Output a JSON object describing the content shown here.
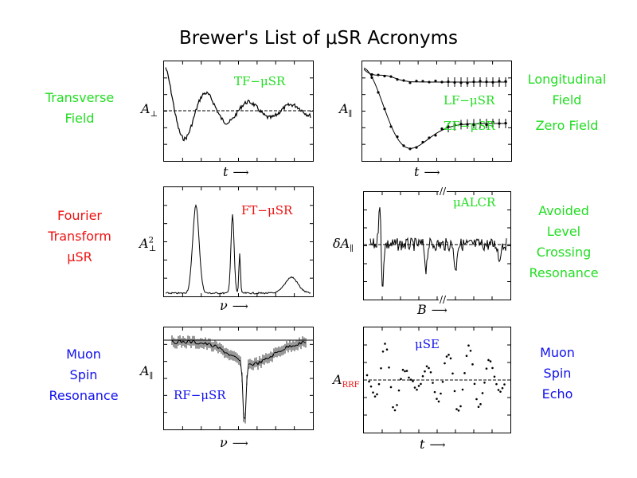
{
  "title": "Brewer's List of μSR Acronyms",
  "colors": {
    "green": "#22dd22",
    "red": "#ee1111",
    "blue": "#1111ee"
  },
  "rows": [
    {
      "left": {
        "lines": [
          "Transverse",
          "Field"
        ],
        "color": "green"
      },
      "right": {
        "lines": [
          "Longitudinal",
          "Field",
          "",
          "Zero Field"
        ],
        "color": "green"
      }
    },
    {
      "left": {
        "lines": [
          "Fourier",
          "Transform",
          "μSR"
        ],
        "color": "red"
      },
      "right": {
        "lines": [
          "Avoided",
          "Level",
          "Crossing",
          "Resonance"
        ],
        "color": "green"
      }
    },
    {
      "left": {
        "lines": [
          "Muon",
          "Spin",
          "Resonance"
        ],
        "color": "blue"
      },
      "right": {
        "lines": [
          "Muon",
          "Spin",
          "Echo"
        ],
        "color": "blue"
      }
    }
  ],
  "panels": {
    "tf": {
      "label": "TF−μSR",
      "ylabel": "A",
      "ysub": "⊥",
      "xlabel": "t"
    },
    "lfzf": {
      "label_lf": "LF−μSR",
      "label_zf": "ZF−μSR",
      "ylabel": "A",
      "ysub": "∥",
      "xlabel": "t"
    },
    "ft": {
      "label": "FT−μSR",
      "ylabel": "A",
      "ysub": "⊥",
      "ysup": "2",
      "xlabel": "ν"
    },
    "alcr": {
      "label": "μALCR",
      "ylabel": "δA",
      "ysub": "∥",
      "xlabel": "B"
    },
    "rf": {
      "label": "RF−μSR",
      "ylabel": "A",
      "ysub": "∥",
      "xlabel": "ν"
    },
    "se": {
      "label": "μSE",
      "ylabel": "A",
      "ysub": "RRF",
      "xlabel": "t"
    }
  },
  "chart_data": [
    {
      "type": "line",
      "name": "tf",
      "description_series": [
        "damped oscillation"
      ],
      "title": "TF−μSR",
      "xlabel": "t",
      "ylabel": "A⊥"
    },
    {
      "type": "line",
      "name": "lfzf",
      "series": [
        {
          "name": "LF−μSR"
        },
        {
          "name": "ZF−μSR"
        }
      ],
      "xlabel": "t",
      "ylabel": "A∥"
    },
    {
      "type": "line",
      "name": "ft",
      "title": "FT−μSR",
      "xlabel": "ν",
      "ylabel": "A⊥²"
    },
    {
      "type": "line",
      "name": "alcr",
      "title": "μALCR",
      "xlabel": "B",
      "ylabel": "δA∥"
    },
    {
      "type": "line",
      "name": "rf",
      "title": "RF−μSR",
      "xlabel": "ν",
      "ylabel": "A∥"
    },
    {
      "type": "scatter",
      "name": "se",
      "title": "μSE",
      "xlabel": "t",
      "ylabel": "A RRF"
    }
  ]
}
